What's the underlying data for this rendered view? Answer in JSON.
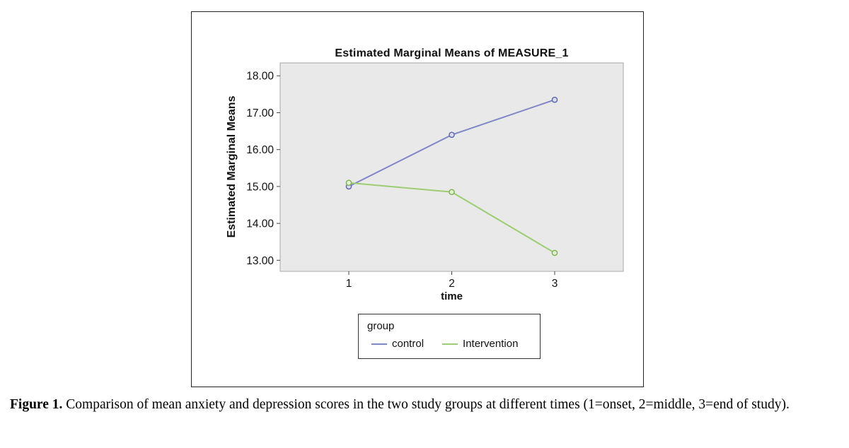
{
  "figure": {
    "caption_label": "Figure 1.",
    "caption_text": " Comparison of mean anxiety and depression scores in the two study groups at different times (1=onset, 2=middle, 3=end of study)."
  },
  "chart_data": {
    "type": "line",
    "title": "Estimated Marginal Means of MEASURE_1",
    "xlabel": "time",
    "ylabel": "Estimated Marginal Means",
    "legend_title": "group",
    "legend_position": "bottom",
    "categories": [
      "1",
      "2",
      "3"
    ],
    "series": [
      {
        "name": "control",
        "values": [
          15.0,
          16.4,
          17.35
        ],
        "color": "#7e86c6",
        "marker_stroke": "#5a63a8",
        "marker_fill": "#d9dcef"
      },
      {
        "name": "Intervention",
        "values": [
          15.1,
          14.85,
          13.2
        ],
        "color": "#9ccd72",
        "marker_stroke": "#7cb14e",
        "marker_fill": "#e3f1d2"
      }
    ],
    "ylim": [
      12.7,
      18.35
    ],
    "yticks": [
      13,
      14,
      15,
      16,
      17,
      18
    ],
    "ytick_labels": [
      "13.00",
      "14.00",
      "15.00",
      "16.00",
      "17.00",
      "18.00"
    ],
    "xtick_labels": [
      "1",
      "2",
      "3"
    ],
    "grid": false,
    "plot_bg": "#e9e9e9",
    "plot_border": "#a8a8a8"
  }
}
